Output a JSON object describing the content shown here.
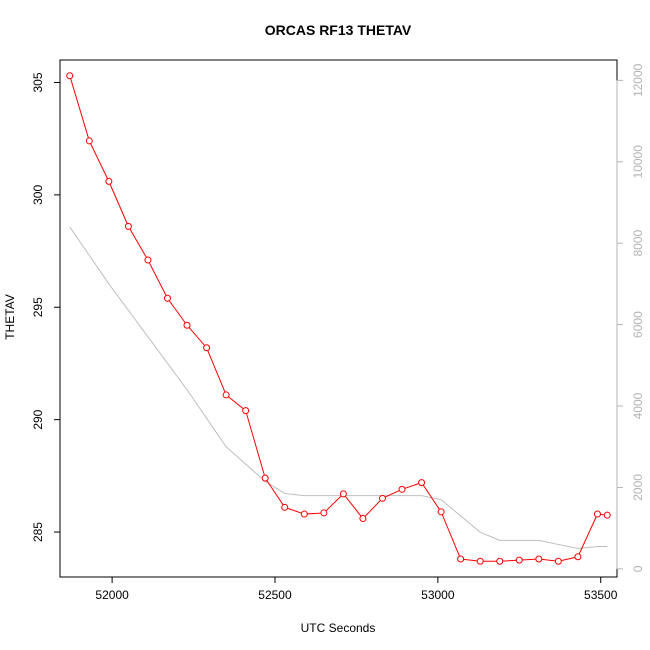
{
  "chart_data": {
    "type": "line",
    "title": "ORCAS RF13 THETAV",
    "xlabel": "UTC Seconds",
    "ylabel": "THETAV",
    "xlim": [
      51840,
      53550
    ],
    "ylim": [
      283,
      306
    ],
    "y2lim": [
      -200,
      12500
    ],
    "x_ticks": [
      52000,
      52500,
      53000,
      53500
    ],
    "y_ticks": [
      285,
      290,
      295,
      300,
      305
    ],
    "y2_ticks": [
      0,
      2000,
      4000,
      6000,
      8000,
      10000,
      12000
    ],
    "colors": {
      "series_primary": "#ff0000",
      "series_secondary": "#bebebe",
      "right_axis": "#b3b3b3"
    },
    "series": [
      {
        "axis": "left",
        "style": "line+circle",
        "x": [
          51870,
          51930,
          51990,
          52050,
          52110,
          52170,
          52230,
          52290,
          52350,
          52410,
          52470,
          52530,
          52590,
          52650,
          52710,
          52770,
          52830,
          52890,
          52950,
          53010,
          53070,
          53130,
          53190,
          53250,
          53310,
          53370,
          53430,
          53490,
          53520
        ],
        "values": [
          305.3,
          302.4,
          300.6,
          298.6,
          297.1,
          295.4,
          294.2,
          293.2,
          291.1,
          290.4,
          287.4,
          286.1,
          285.8,
          285.85,
          286.7,
          285.6,
          286.5,
          286.9,
          287.2,
          285.9,
          283.8,
          283.7,
          283.7,
          283.75,
          283.8,
          283.7,
          283.9,
          285.8,
          285.75
        ]
      },
      {
        "axis": "right",
        "style": "line",
        "x": [
          51870,
          51990,
          52110,
          52230,
          52350,
          52470,
          52530,
          52590,
          52710,
          52830,
          52950,
          53010,
          53070,
          53130,
          53190,
          53310,
          53370,
          53430,
          53490,
          53520
        ],
        "values": [
          8400,
          7000,
          5700,
          4400,
          3000,
          2150,
          1850,
          1800,
          1800,
          1800,
          1800,
          1700,
          1300,
          900,
          700,
          700,
          600,
          500,
          550,
          550
        ]
      }
    ]
  }
}
